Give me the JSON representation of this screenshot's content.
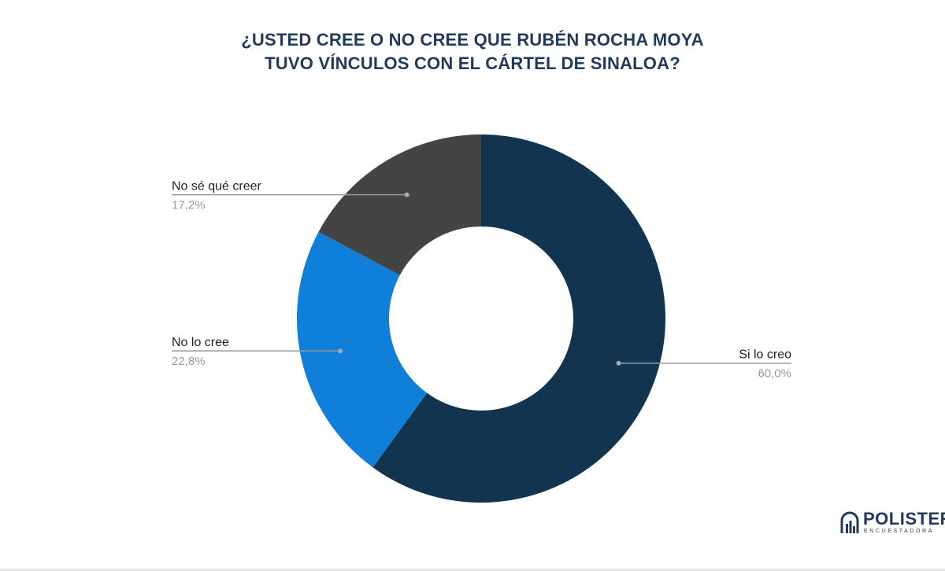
{
  "chart_data": {
    "type": "pie",
    "donut": true,
    "title_lines": [
      "¿USTED CREE O NO CREE QUE RUBÉN ROCHA MOYA",
      "TUVO VÍNCULOS CON EL CÁRTEL DE SINALOA?"
    ],
    "slices": [
      {
        "label": "Si lo creo",
        "value": 60.0,
        "value_label": "60,0%",
        "color": "#13344f",
        "label_side": "right"
      },
      {
        "label": "No lo cree",
        "value": 22.8,
        "value_label": "22,8%",
        "color": "#0f7fd9",
        "label_side": "left"
      },
      {
        "label": "No sé qué creer",
        "value": 17.2,
        "value_label": "17,2%",
        "color": "#444444",
        "label_side": "left"
      }
    ],
    "start_angle": "top",
    "direction": "clockwise",
    "legend": "none",
    "label_line_color": "#999999"
  },
  "brand": {
    "name": "POLISTER",
    "tagline": "ENCUESTADORA",
    "color": "#1f3a5a",
    "icon": "bar-chart-logo-icon"
  }
}
